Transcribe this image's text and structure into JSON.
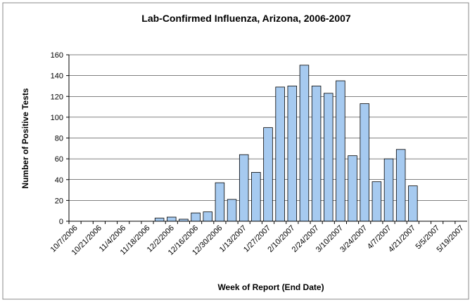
{
  "chart_data": {
    "type": "bar",
    "title": "Lab-Confirmed Influenza, Arizona, 2006-2007",
    "x_label": "Week of Report (End Date)",
    "y_label": "Number of Positive Tests",
    "categories": [
      "10/7/2006",
      null,
      "10/21/2006",
      null,
      "11/4/2006",
      null,
      "11/18/2006",
      null,
      "12/2/2006",
      null,
      "12/16/2006",
      null,
      "12/30/2006",
      null,
      "1/13/2007",
      null,
      "1/27/2007",
      null,
      "2/10/2007",
      null,
      "2/24/2007",
      null,
      "3/10/2007",
      null,
      "3/24/2007",
      null,
      "4/7/2007",
      null,
      "4/21/2007",
      null,
      "5/5/2007",
      null,
      "5/19/2007"
    ],
    "values": [
      0,
      0,
      0,
      0,
      0,
      0,
      0,
      3,
      4,
      2,
      8,
      9,
      37,
      21,
      64,
      47,
      90,
      129,
      130,
      150,
      130,
      123,
      135,
      63,
      113,
      38,
      60,
      69,
      34,
      0,
      0,
      0,
      0
    ],
    "color": "#a6caf0",
    "ylim": [
      0,
      160
    ],
    "yticks": [
      0,
      20,
      40,
      60,
      80,
      100,
      120,
      140,
      160
    ],
    "grid": true
  }
}
